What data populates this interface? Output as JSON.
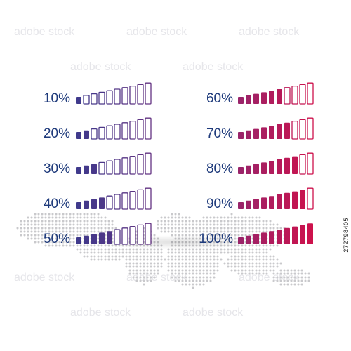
{
  "colors": {
    "text": "#1e3a7b",
    "gradient_start": "#3f3a8c",
    "gradient_mid": "#7a2f7c",
    "gradient_end": "#d0104a",
    "map": "#c9c9cc"
  },
  "segments_per_bar": 10,
  "left_column": [
    {
      "label": "10%",
      "level": 0.1
    },
    {
      "label": "20%",
      "level": 0.2
    },
    {
      "label": "30%",
      "level": 0.3
    },
    {
      "label": "40%",
      "level": 0.4
    },
    {
      "label": "50%",
      "level": 0.5
    }
  ],
  "right_column": [
    {
      "label": "60%",
      "level": 0.6
    },
    {
      "label": "70%",
      "level": 0.7
    },
    {
      "label": "80%",
      "level": 0.8
    },
    {
      "label": "90%",
      "level": 0.9
    },
    {
      "label": "100%",
      "level": 1.0
    }
  ],
  "stock_id": "272798405",
  "watermark": "adobe stock",
  "background_icon": "world-map-dots"
}
